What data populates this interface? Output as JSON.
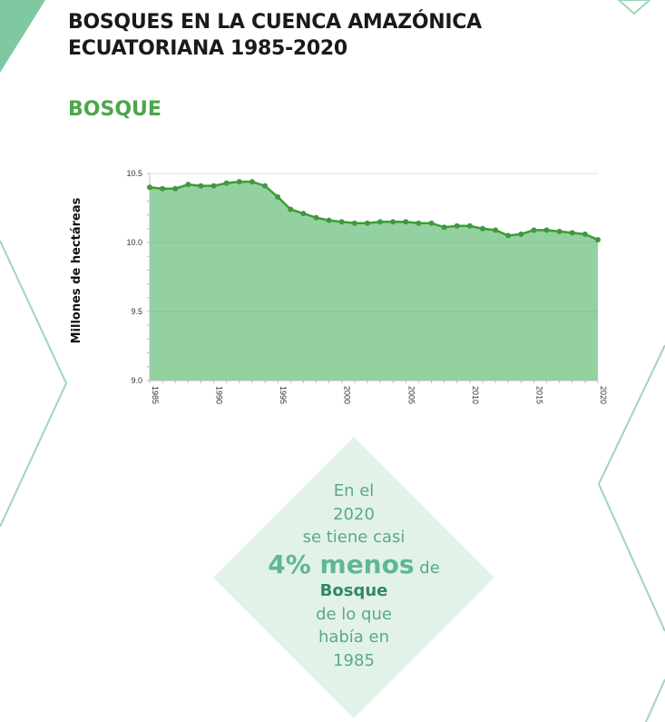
{
  "page": {
    "title_lines": [
      "BOSQUES EN LA CUENCA AMAZÓNICA",
      "ECUATORIANA 1985-2020"
    ],
    "subtitle": "BOSQUE"
  },
  "colors": {
    "accent_green": "#4ca64a",
    "area_fill": "#93d1a1",
    "line_stroke": "#3f9a3a",
    "deco_green": "#7fc9a0",
    "diamond_fill": "#e3f2e8",
    "callout_text": "#5aa985"
  },
  "chart_data": {
    "type": "area",
    "title": "",
    "xlabel": "",
    "ylabel": "Millones de hectáreas",
    "ylim": [
      9.0,
      10.5
    ],
    "xlim": [
      1985,
      2020
    ],
    "yticks": [
      "9.0",
      "9.5",
      "10.0",
      "10.5"
    ],
    "xticks": [
      "1985",
      "1990",
      "1995",
      "2000",
      "2005",
      "2010",
      "2015",
      "2020"
    ],
    "grid": true,
    "x": [
      1985,
      1986,
      1987,
      1988,
      1989,
      1990,
      1991,
      1992,
      1993,
      1994,
      1995,
      1996,
      1997,
      1998,
      1999,
      2000,
      2001,
      2002,
      2003,
      2004,
      2005,
      2006,
      2007,
      2008,
      2009,
      2010,
      2011,
      2012,
      2013,
      2014,
      2015,
      2016,
      2017,
      2018,
      2019,
      2020
    ],
    "values": [
      10.4,
      10.39,
      10.39,
      10.42,
      10.41,
      10.41,
      10.43,
      10.44,
      10.44,
      10.41,
      10.33,
      10.24,
      10.21,
      10.18,
      10.16,
      10.15,
      10.14,
      10.14,
      10.15,
      10.15,
      10.15,
      10.14,
      10.14,
      10.11,
      10.12,
      10.12,
      10.1,
      10.09,
      10.05,
      10.06,
      10.09,
      10.09,
      10.08,
      10.07,
      10.06,
      10.02
    ]
  },
  "callout": {
    "line1": "En el",
    "line2": "2020",
    "line3": "se tiene casi",
    "highlight": "4% menos",
    "highlight_suffix": "de",
    "bold_word": "Bosque",
    "line6": "de lo que",
    "line7": "había en",
    "line8": "1985"
  }
}
